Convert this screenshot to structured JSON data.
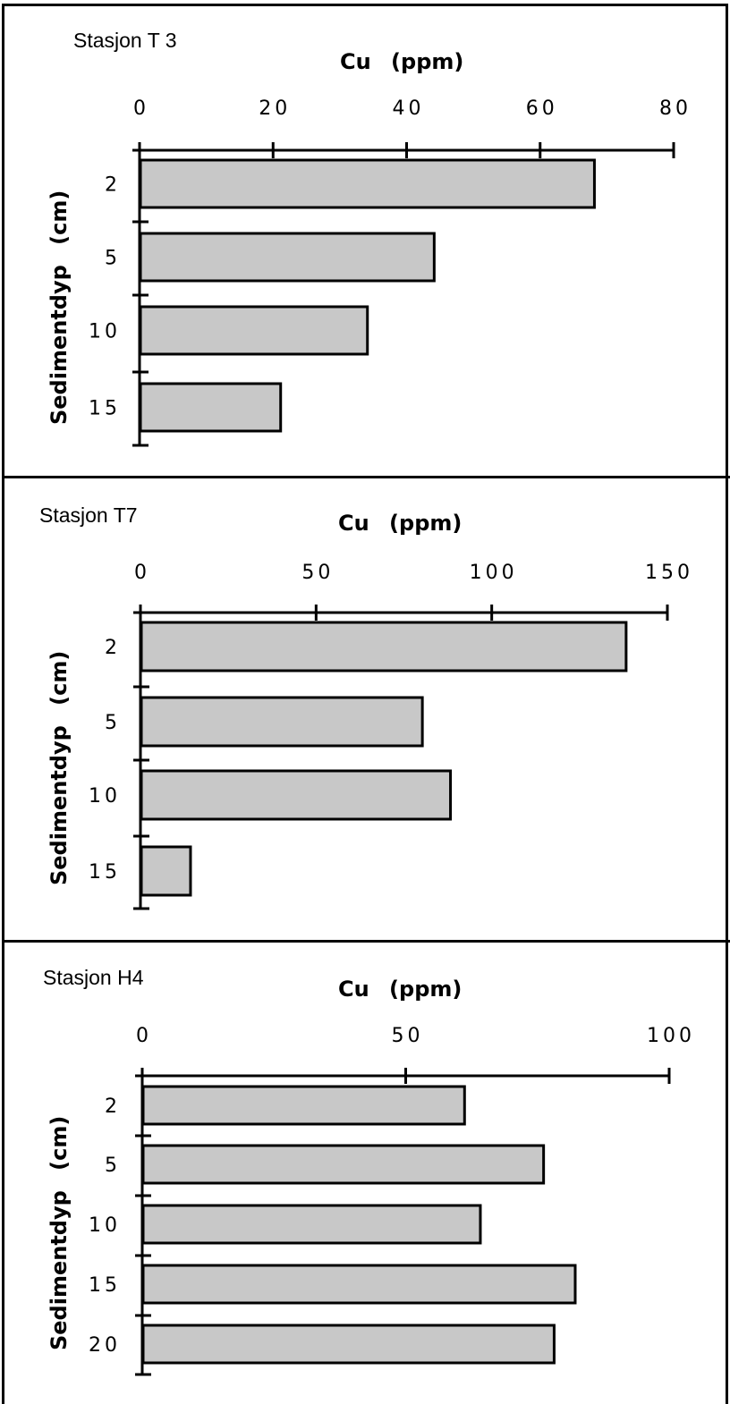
{
  "colors": {
    "bar_fill": "#c8c8c8",
    "bar_stroke": "#000000",
    "frame": "#000000",
    "background": "#ffffff"
  },
  "chart_data": [
    {
      "type": "bar",
      "orientation": "horizontal",
      "title": "Stasjon T 3",
      "xlabel": "Cu   (ppm)",
      "ylabel": "Sedimentdyp   (cm)",
      "xlim": [
        0,
        80
      ],
      "xticks": [
        "0",
        "20",
        "40",
        "60",
        "80"
      ],
      "categories": [
        "2",
        "5",
        "10",
        "15"
      ],
      "values": [
        68,
        44,
        34,
        21
      ]
    },
    {
      "type": "bar",
      "orientation": "horizontal",
      "title": "Stasjon T7",
      "xlabel": "Cu   (ppm)",
      "ylabel": "Sedimentdyp   (cm)",
      "xlim": [
        0,
        150
      ],
      "xticks": [
        "0",
        "50",
        "100",
        "150"
      ],
      "categories": [
        "2",
        "5",
        "10",
        "15"
      ],
      "values": [
        138,
        80,
        88,
        14
      ]
    },
    {
      "type": "bar",
      "orientation": "horizontal",
      "title": "Stasjon H4",
      "xlabel": "Cu   (ppm)",
      "ylabel": "Sedimentdyp   (cm)",
      "xlim": [
        0,
        100
      ],
      "xticks": [
        "0",
        "50",
        "100"
      ],
      "categories": [
        "2",
        "5",
        "10",
        "15",
        "20"
      ],
      "values": [
        61,
        76,
        64,
        82,
        78
      ]
    }
  ]
}
